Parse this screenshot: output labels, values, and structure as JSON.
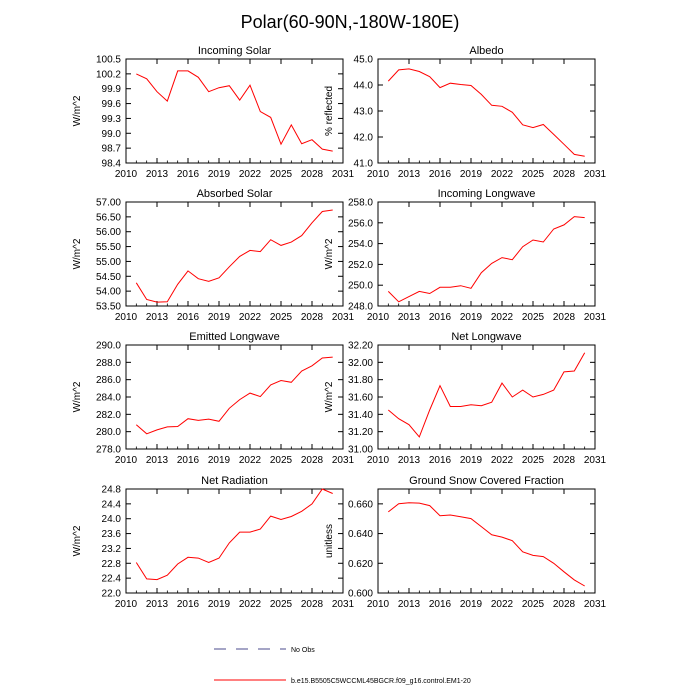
{
  "figure": {
    "title": "Polar(60-90N,-180W-180E)",
    "legend": {
      "obs_label": "No Obs",
      "obs_color": "#4b4b8c",
      "model_label": "b.e15.B5505C5WCCML45BGCR.f09_g16.control.EM1-20",
      "model_color": "#ff0000"
    }
  },
  "chart_data": [
    {
      "type": "line",
      "title": "Incoming Solar",
      "xlabel": "",
      "ylabel": "W/m^2",
      "xlim": [
        2010,
        2031
      ],
      "xticks": [
        "2010",
        "2013",
        "2016",
        "2019",
        "2022",
        "2025",
        "2028",
        "2031"
      ],
      "ylim": [
        98.4,
        100.5
      ],
      "yticks": [
        "98.4",
        "98.7",
        "99.0",
        "99.3",
        "99.6",
        "99.9",
        "100.2",
        "100.5"
      ],
      "color": "#ff0000",
      "x": [
        2011,
        2012,
        2013,
        2014,
        2015,
        2016,
        2017,
        2018,
        2019,
        2020,
        2021,
        2022,
        2023,
        2024,
        2025,
        2026,
        2027,
        2028,
        2029,
        2030
      ],
      "y": [
        100.2,
        100.1,
        99.84,
        99.65,
        100.26,
        100.26,
        100.13,
        99.84,
        99.92,
        99.96,
        99.67,
        99.97,
        99.44,
        99.32,
        98.78,
        99.17,
        98.79,
        98.87,
        98.68,
        98.64
      ]
    },
    {
      "type": "line",
      "title": "Albedo",
      "xlabel": "",
      "ylabel": "% reflected",
      "xlim": [
        2010,
        2031
      ],
      "xticks": [
        "2010",
        "2013",
        "2016",
        "2019",
        "2022",
        "2025",
        "2028",
        "2031"
      ],
      "ylim": [
        41.0,
        45.0
      ],
      "yticks": [
        "41.0",
        "42.0",
        "43.0",
        "44.0",
        "45.0"
      ],
      "color": "#ff0000",
      "x": [
        2011,
        2012,
        2013,
        2014,
        2015,
        2016,
        2017,
        2018,
        2019,
        2020,
        2021,
        2022,
        2023,
        2024,
        2025,
        2026,
        2027,
        2028,
        2029,
        2030
      ],
      "y": [
        44.15,
        44.58,
        44.62,
        44.52,
        44.32,
        43.9,
        44.07,
        44.02,
        43.98,
        43.64,
        43.22,
        43.18,
        42.95,
        42.47,
        42.36,
        42.48,
        42.1,
        41.72,
        41.33,
        41.26
      ]
    },
    {
      "type": "line",
      "title": "Absorbed Solar",
      "xlabel": "",
      "ylabel": "W/m^2",
      "xlim": [
        2010,
        2031
      ],
      "xticks": [
        "2010",
        "2013",
        "2016",
        "2019",
        "2022",
        "2025",
        "2028",
        "2031"
      ],
      "ylim": [
        53.5,
        57.0
      ],
      "yticks": [
        "53.50",
        "54.00",
        "54.50",
        "55.00",
        "55.50",
        "56.00",
        "56.50",
        "57.00"
      ],
      "color": "#ff0000",
      "x": [
        2011,
        2012,
        2013,
        2014,
        2015,
        2016,
        2017,
        2018,
        2019,
        2020,
        2021,
        2022,
        2023,
        2024,
        2025,
        2026,
        2027,
        2028,
        2029,
        2030
      ],
      "y": [
        54.28,
        53.72,
        53.63,
        53.64,
        54.23,
        54.68,
        54.42,
        54.33,
        54.45,
        54.82,
        55.17,
        55.37,
        55.33,
        55.73,
        55.54,
        55.65,
        55.87,
        56.3,
        56.68,
        56.73
      ]
    },
    {
      "type": "line",
      "title": "Incoming Longwave",
      "xlabel": "",
      "ylabel": "W/m^2",
      "xlim": [
        2010,
        2031
      ],
      "xticks": [
        "2010",
        "2013",
        "2016",
        "2019",
        "2022",
        "2025",
        "2028",
        "2031"
      ],
      "ylim": [
        248.0,
        258.0
      ],
      "yticks": [
        "248.0",
        "250.0",
        "252.0",
        "254.0",
        "256.0",
        "258.0"
      ],
      "color": "#ff0000",
      "x": [
        2011,
        2012,
        2013,
        2014,
        2015,
        2016,
        2017,
        2018,
        2019,
        2020,
        2021,
        2022,
        2023,
        2024,
        2025,
        2026,
        2027,
        2028,
        2029,
        2030
      ],
      "y": [
        249.4,
        248.4,
        248.9,
        249.4,
        249.2,
        249.8,
        249.8,
        249.95,
        249.7,
        251.2,
        252.1,
        252.65,
        252.45,
        253.7,
        254.35,
        254.15,
        255.4,
        255.8,
        256.6,
        256.5
      ]
    },
    {
      "type": "line",
      "title": "Emitted Longwave",
      "xlabel": "",
      "ylabel": "W/m^2",
      "xlim": [
        2010,
        2031
      ],
      "xticks": [
        "2010",
        "2013",
        "2016",
        "2019",
        "2022",
        "2025",
        "2028",
        "2031"
      ],
      "ylim": [
        278.0,
        290.0
      ],
      "yticks": [
        "278.0",
        "280.0",
        "282.0",
        "284.0",
        "286.0",
        "288.0",
        "290.0"
      ],
      "color": "#ff0000",
      "x": [
        2011,
        2012,
        2013,
        2014,
        2015,
        2016,
        2017,
        2018,
        2019,
        2020,
        2021,
        2022,
        2023,
        2024,
        2025,
        2026,
        2027,
        2028,
        2029,
        2030
      ],
      "y": [
        280.8,
        279.75,
        280.2,
        280.55,
        280.6,
        281.5,
        281.3,
        281.45,
        281.2,
        282.7,
        283.7,
        284.45,
        284.05,
        285.4,
        285.9,
        285.7,
        287.0,
        287.6,
        288.5,
        288.6
      ]
    },
    {
      "type": "line",
      "title": "Net Longwave",
      "xlabel": "",
      "ylabel": "W/m^2",
      "xlim": [
        2010,
        2031
      ],
      "xticks": [
        "2010",
        "2013",
        "2016",
        "2019",
        "2022",
        "2025",
        "2028",
        "2031"
      ],
      "ylim": [
        31.0,
        32.2
      ],
      "yticks": [
        "31.00",
        "31.20",
        "31.40",
        "31.60",
        "31.80",
        "32.00",
        "32.20"
      ],
      "color": "#ff0000",
      "x": [
        2011,
        2012,
        2013,
        2014,
        2015,
        2016,
        2017,
        2018,
        2019,
        2020,
        2021,
        2022,
        2023,
        2024,
        2025,
        2026,
        2027,
        2028,
        2029,
        2030
      ],
      "y": [
        31.45,
        31.35,
        31.28,
        31.14,
        31.45,
        31.73,
        31.49,
        31.49,
        31.51,
        31.5,
        31.54,
        31.76,
        31.6,
        31.68,
        31.6,
        31.63,
        31.68,
        31.89,
        31.9,
        32.11
      ]
    },
    {
      "type": "line",
      "title": "Net Radiation",
      "xlabel": "",
      "ylabel": "W/m^2",
      "xlim": [
        2010,
        2031
      ],
      "xticks": [
        "2010",
        "2013",
        "2016",
        "2019",
        "2022",
        "2025",
        "2028",
        "2031"
      ],
      "ylim": [
        22.0,
        24.8
      ],
      "yticks": [
        "22.0",
        "22.4",
        "22.8",
        "23.2",
        "23.6",
        "24.0",
        "24.4",
        "24.8"
      ],
      "color": "#ff0000",
      "x": [
        2011,
        2012,
        2013,
        2014,
        2015,
        2016,
        2017,
        2018,
        2019,
        2020,
        2021,
        2022,
        2023,
        2024,
        2025,
        2026,
        2027,
        2028,
        2029,
        2030
      ],
      "y": [
        22.82,
        22.38,
        22.36,
        22.48,
        22.78,
        22.96,
        22.94,
        22.82,
        22.94,
        23.35,
        23.64,
        23.64,
        23.72,
        24.07,
        23.98,
        24.06,
        24.2,
        24.4,
        24.8,
        24.68
      ]
    },
    {
      "type": "line",
      "title": "Ground Snow Covered Fraction",
      "xlabel": "",
      "ylabel": "unitless",
      "xlim": [
        2010,
        2031
      ],
      "xticks": [
        "2010",
        "2013",
        "2016",
        "2019",
        "2022",
        "2025",
        "2028",
        "2031"
      ],
      "ylim": [
        0.6,
        0.67
      ],
      "yticks": [
        "0.600",
        "0.620",
        "0.640",
        "0.660"
      ],
      "color": "#ff0000",
      "x": [
        2011,
        2012,
        2013,
        2014,
        2015,
        2016,
        2017,
        2018,
        2019,
        2020,
        2021,
        2022,
        2023,
        2024,
        2025,
        2026,
        2027,
        2028,
        2029,
        2030
      ],
      "y": [
        0.6546,
        0.6601,
        0.6608,
        0.6605,
        0.6588,
        0.652,
        0.6525,
        0.6513,
        0.6501,
        0.6447,
        0.6392,
        0.6376,
        0.6352,
        0.6277,
        0.6253,
        0.6245,
        0.62,
        0.6143,
        0.6088,
        0.6047
      ]
    }
  ]
}
